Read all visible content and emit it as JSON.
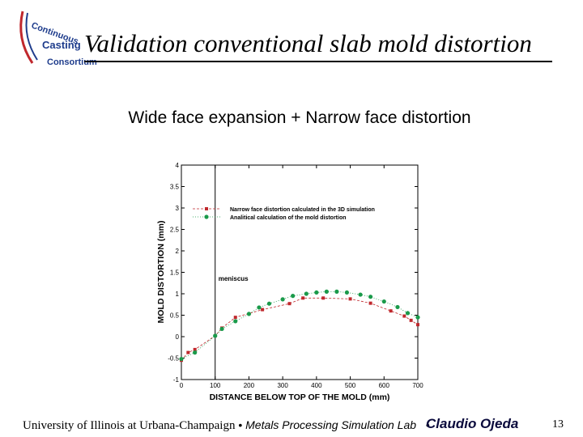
{
  "slide": {
    "title": "Validation conventional slab mold distortion",
    "subtitle": "Wide face expansion + Narrow face distortion",
    "logo_text": [
      "Continuous",
      "Casting",
      "Consortium"
    ],
    "footer": {
      "university": "University of Illinois at Urbana-Champaign",
      "lab": "Metals Processing Simulation Lab",
      "separator": "•",
      "author": "Claudio Ojeda",
      "page_number": "13"
    },
    "colors": {
      "logo_red": "#c0282d",
      "logo_blue": "#1e3c8c",
      "series1": "#c0282d",
      "series2": "#1a9a4a"
    }
  },
  "chart_data": {
    "type": "line",
    "xlabel": "DISTANCE BELOW TOP OF THE MOLD (mm)",
    "ylabel": "MOLD DISTORTION (mm)",
    "xlim": [
      0,
      700
    ],
    "ylim": [
      -1,
      4
    ],
    "x_ticks": [
      "0",
      "100",
      "200",
      "300",
      "400",
      "500",
      "600",
      "700"
    ],
    "y_ticks": [
      "-1",
      "-0.5",
      "0",
      "0.5",
      "1",
      "1.5",
      "2",
      "2.5",
      "3",
      "3.5",
      "4"
    ],
    "grid": false,
    "legend_position": "top",
    "annotation": {
      "text": "meniscus",
      "x": 100
    },
    "series": [
      {
        "name": "Narrow face distortion calculated in the 3D simulation",
        "marker": "square",
        "color": "#c0282d",
        "points": [
          [
            0,
            -0.55
          ],
          [
            20,
            -0.37
          ],
          [
            40,
            -0.3
          ],
          [
            100,
            0.02
          ],
          [
            120,
            0.2
          ],
          [
            160,
            0.45
          ],
          [
            240,
            0.63
          ],
          [
            320,
            0.77
          ],
          [
            360,
            0.9
          ],
          [
            420,
            0.9
          ],
          [
            500,
            0.88
          ],
          [
            560,
            0.78
          ],
          [
            620,
            0.6
          ],
          [
            660,
            0.48
          ],
          [
            680,
            0.38
          ],
          [
            700,
            0.28
          ]
        ]
      },
      {
        "name": "Analitical calculation of the mold distortion",
        "marker": "circle",
        "color": "#1a9a4a",
        "points": [
          [
            0,
            -0.52
          ],
          [
            40,
            -0.37
          ],
          [
            100,
            0.02
          ],
          [
            120,
            0.18
          ],
          [
            160,
            0.36
          ],
          [
            200,
            0.53
          ],
          [
            230,
            0.68
          ],
          [
            260,
            0.77
          ],
          [
            300,
            0.87
          ],
          [
            330,
            0.95
          ],
          [
            370,
            1.0
          ],
          [
            400,
            1.03
          ],
          [
            430,
            1.05
          ],
          [
            460,
            1.05
          ],
          [
            490,
            1.03
          ],
          [
            530,
            0.98
          ],
          [
            560,
            0.93
          ],
          [
            600,
            0.82
          ],
          [
            640,
            0.69
          ],
          [
            670,
            0.55
          ],
          [
            700,
            0.45
          ]
        ]
      }
    ]
  }
}
